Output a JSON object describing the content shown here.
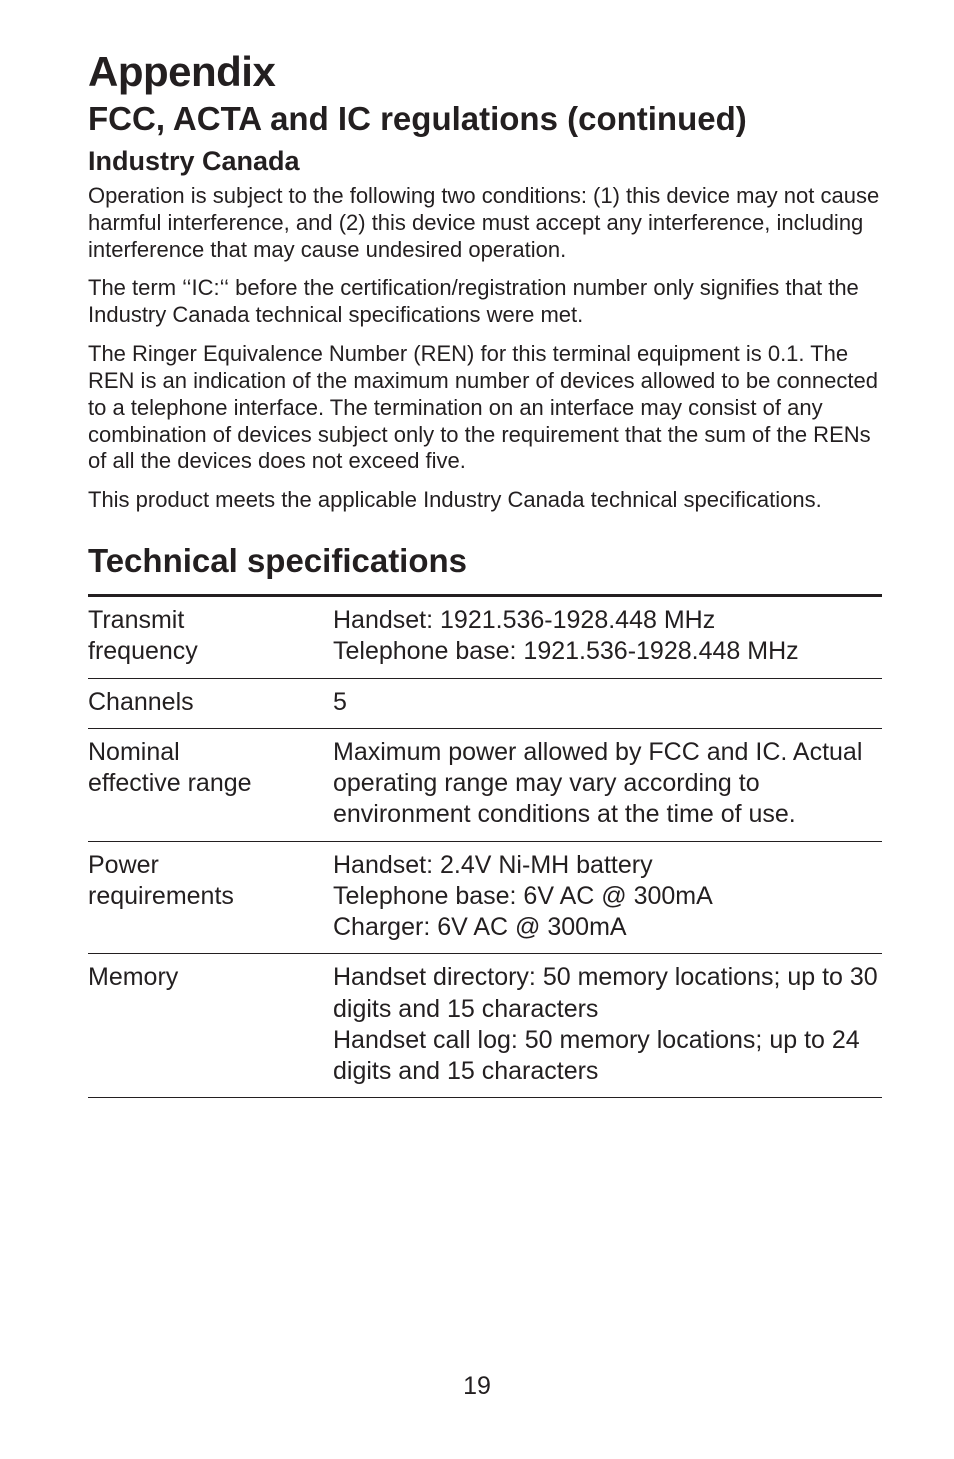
{
  "header": {
    "title": "Appendix",
    "subtitle": "FCC, ACTA and IC regulations (continued)"
  },
  "section1": {
    "heading": "Industry Canada",
    "para1": "Operation is subject to the following two conditions: (1) this device may not cause harmful interference, and (2) this device must accept any interference, including interference that may cause undesired operation.",
    "para2": "The term ‘‘IC:‘‘ before the certification/registration number only signifies that the Industry Canada technical specifications were met.",
    "para3": "The Ringer Equivalence Number (REN) for this terminal equipment is 0.1. The REN is an indication of the maximum number of devices allowed to be connected to a telephone interface. The termination on an interface may consist of any combination of devices subject only to the requirement that the sum of the RENs of all the devices does not exceed five.",
    "para4": "This product meets the applicable Industry Canada technical specifications."
  },
  "section2": {
    "heading": "Technical specifications",
    "rows": [
      {
        "label_line1": "Transmit",
        "label_line2": "frequency",
        "value_line1": "Handset: 1921.536-1928.448 MHz",
        "value_line2": "Telephone base: 1921.536-1928.448 MHz",
        "value_line3": ""
      },
      {
        "label_line1": "Channels",
        "label_line2": "",
        "value_line1": "5",
        "value_line2": "",
        "value_line3": ""
      },
      {
        "label_line1": "Nominal",
        "label_line2": "effective range",
        "value_line1": "Maximum power allowed by FCC and IC. Actual operating range may vary according to environment conditions at the time of use.",
        "value_line2": "",
        "value_line3": ""
      },
      {
        "label_line1": "Power",
        "label_line2": "requirements",
        "value_line1": "Handset: 2.4V Ni-MH battery",
        "value_line2": "Telephone base: 6V AC @ 300mA",
        "value_line3": "Charger: 6V AC @ 300mA"
      },
      {
        "label_line1": "Memory",
        "label_line2": "",
        "value_line1": "Handset directory: 50 memory locations; up to 30 digits and 15 characters",
        "value_line2": "Handset call log: 50 memory locations; up to 24 digits and 15 characters",
        "value_line3": ""
      }
    ]
  },
  "page_number": "19",
  "colors": {
    "text": "#231f20",
    "background": "#ffffff",
    "rule": "#231f20"
  }
}
